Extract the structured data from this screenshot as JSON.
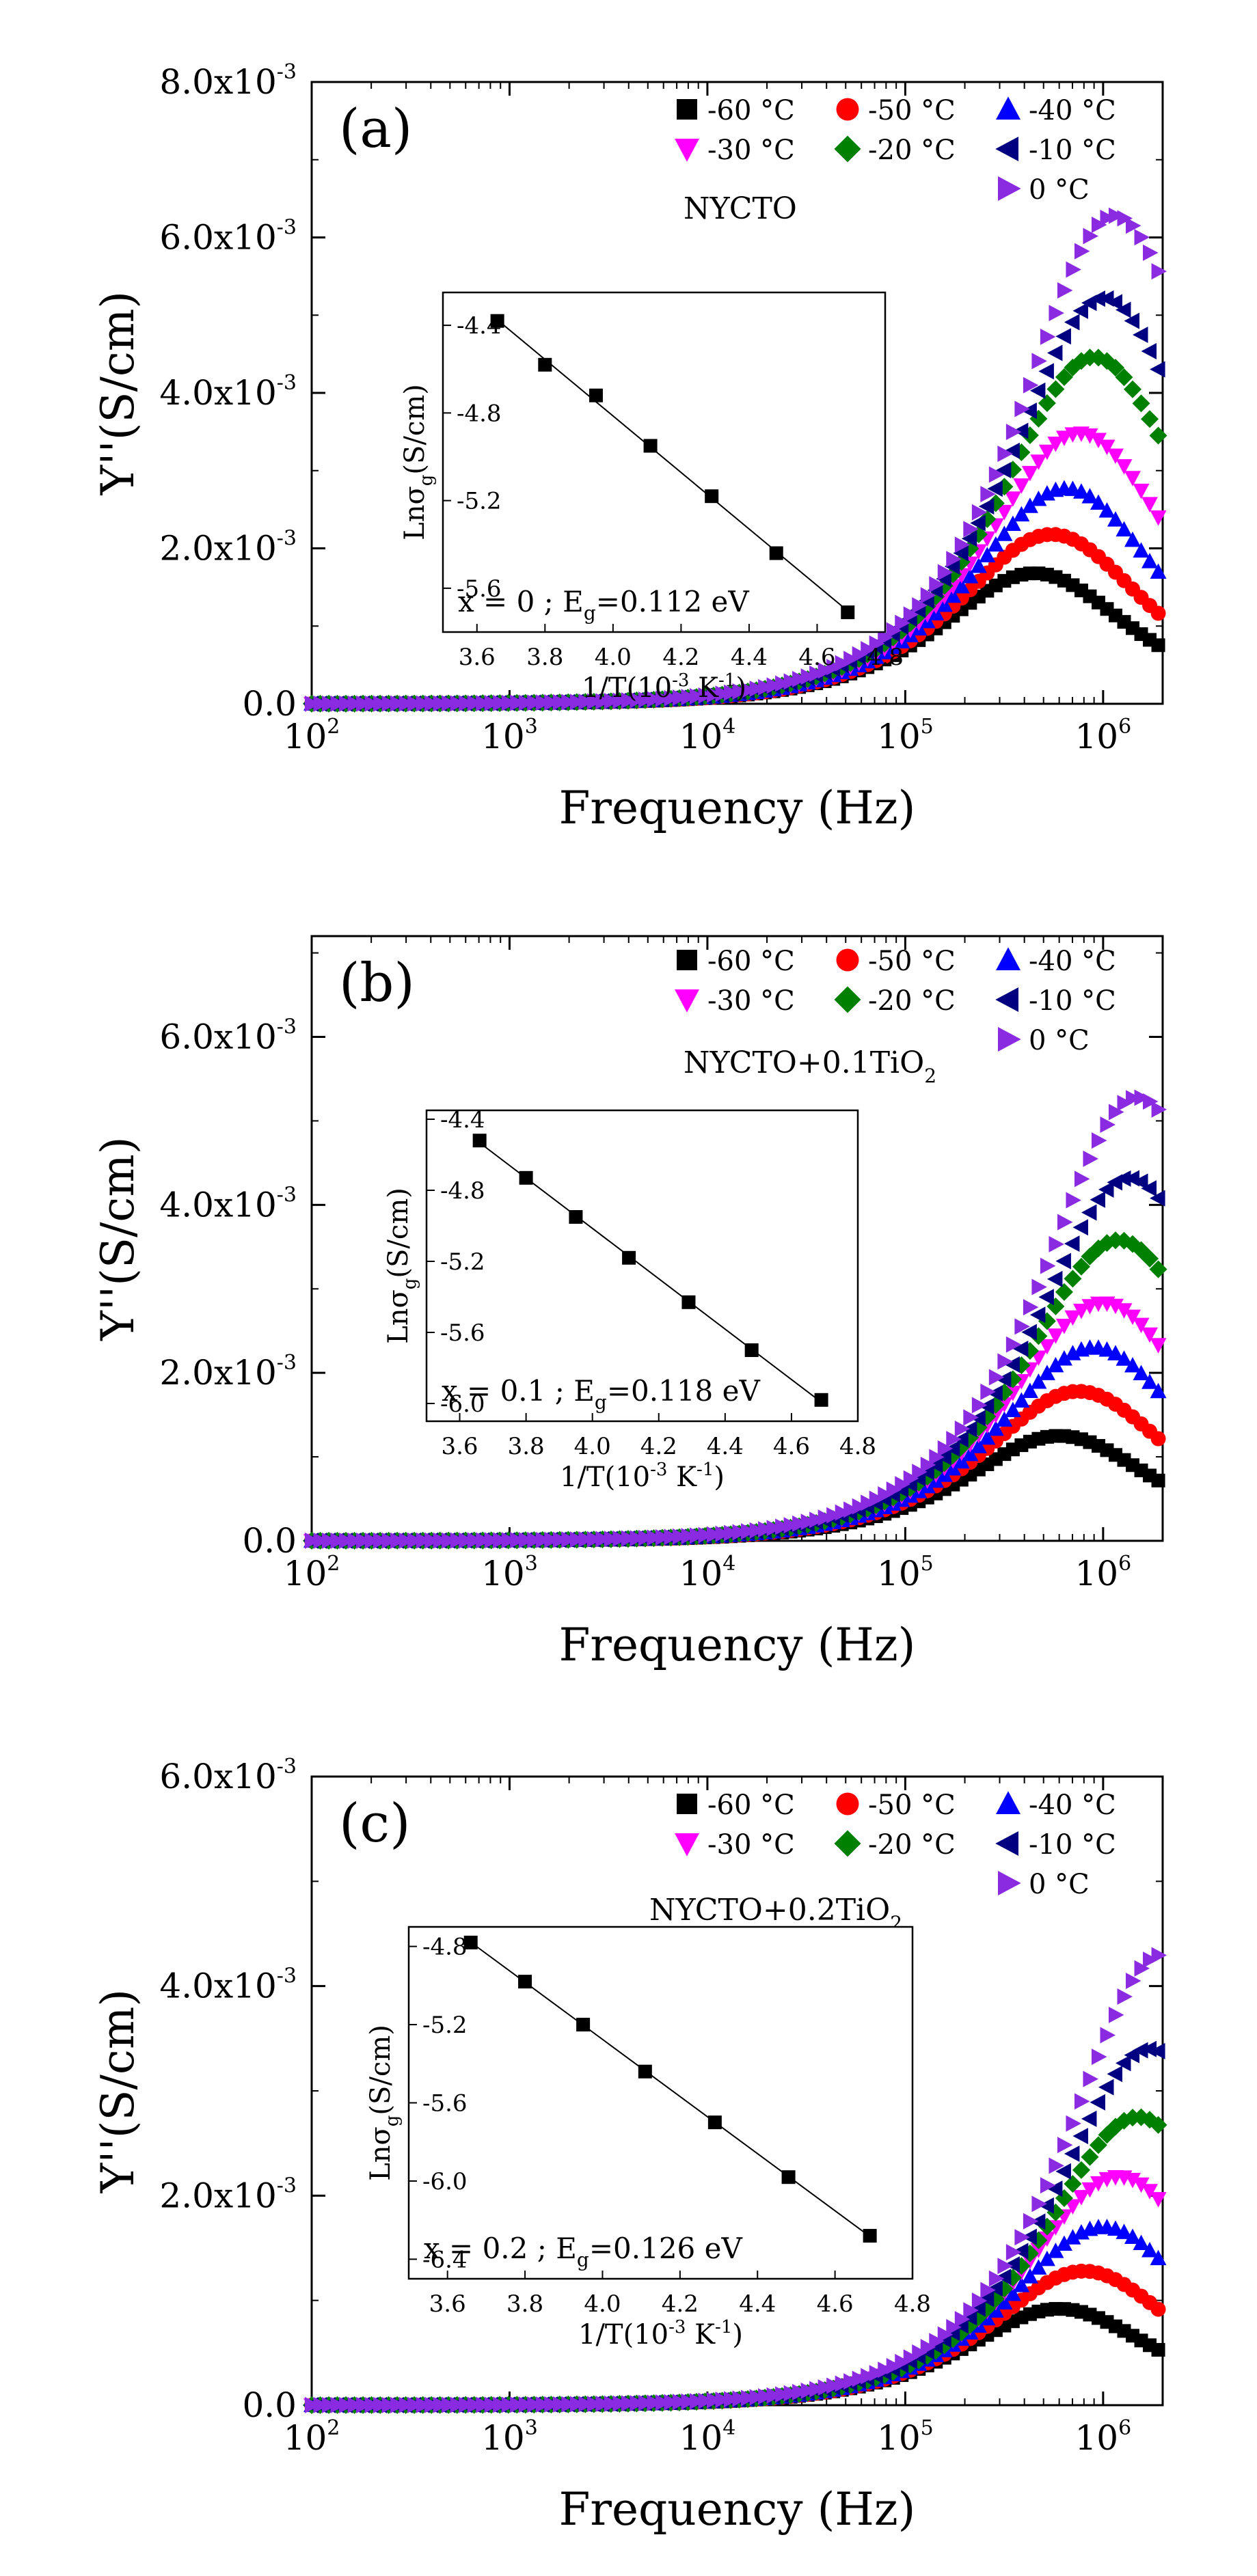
{
  "temperatures": [
    -60,
    -50,
    -40,
    -30,
    -20,
    -10,
    0
  ],
  "series_style": [
    {
      "name": "-60 °C",
      "color": "#000000",
      "marker": "square"
    },
    {
      "name": "-50 °C",
      "color": "#ff0000",
      "marker": "circle"
    },
    {
      "name": "-40 °C",
      "color": "#0000ff",
      "marker": "triangle-up"
    },
    {
      "name": "-30 °C",
      "color": "#ff00ff",
      "marker": "triangle-down"
    },
    {
      "name": "-20 °C",
      "color": "#008000",
      "marker": "diamond"
    },
    {
      "name": "-10 °C",
      "color": "#000080",
      "marker": "triangle-left"
    },
    {
      "name": "0 °C",
      "color": "#8a2be2",
      "marker": "triangle-right"
    }
  ],
  "chart_data": [
    {
      "panel": "(a)",
      "sample_label": "NYCTO",
      "type": "scatter",
      "xscale": "log",
      "xlabel": "Frequency (Hz)",
      "ylabel": "Y''(S/cm)",
      "xlim": [
        100,
        2000000
      ],
      "ylim": [
        0,
        0.008
      ],
      "y_ticks": [
        0,
        0.002,
        0.004,
        0.006,
        0.008
      ],
      "y_tick_labels": [
        "0.0",
        "2.0x10",
        "4.0x10",
        "6.0x10",
        "8.0x10"
      ],
      "peaks": [
        {
          "name": "-60 °C",
          "peak_frequency": 450000,
          "peak_value": 0.00168
        },
        {
          "name": "-50 °C",
          "peak_frequency": 550000,
          "peak_value": 0.00218
        },
        {
          "name": "-40 °C",
          "peak_frequency": 650000,
          "peak_value": 0.00277
        },
        {
          "name": "-30 °C",
          "peak_frequency": 760000,
          "peak_value": 0.00348
        },
        {
          "name": "-20 °C",
          "peak_frequency": 900000,
          "peak_value": 0.00446
        },
        {
          "name": "-10 °C",
          "peak_frequency": 1000000,
          "peak_value": 0.00522
        },
        {
          "name": "0 °C",
          "peak_frequency": 1150000,
          "peak_value": 0.00628
        }
      ],
      "inset": {
        "type": "scatter",
        "xlabel": "1/T(10",
        "ylabel": "Lnσ",
        "x": [
          3.66,
          3.8,
          3.95,
          4.11,
          4.29,
          4.48,
          4.69
        ],
        "y": [
          -4.38,
          -4.58,
          -4.72,
          -4.95,
          -5.18,
          -5.44,
          -5.71
        ],
        "xlim": [
          3.5,
          4.8
        ],
        "ylim": [
          -5.8,
          -4.25
        ],
        "x_ticks": [
          "3.6",
          "3.8",
          "4.0",
          "4.2",
          "4.4",
          "4.6",
          "4.8"
        ],
        "y_ticks": [
          "-4.4",
          "-4.8",
          "-5.2",
          "-5.6"
        ],
        "annotation_prefix": "x = 0 ; E",
        "annotation_suffix": "=0.112 eV"
      }
    },
    {
      "panel": "(b)",
      "sample_label": "NYCTO+0.1TiO",
      "type": "scatter",
      "xscale": "log",
      "xlabel": "Frequency (Hz)",
      "ylabel": "Y''(S/cm)",
      "xlim": [
        100,
        2000000
      ],
      "ylim": [
        0,
        0.0072
      ],
      "y_ticks": [
        0,
        0.002,
        0.004,
        0.006
      ],
      "y_tick_labels": [
        "0.0",
        "2.0x10",
        "4.0x10",
        "6.0x10"
      ],
      "peaks": [
        {
          "name": "-60 °C",
          "peak_frequency": 600000,
          "peak_value": 0.00125
        },
        {
          "name": "-50 °C",
          "peak_frequency": 750000,
          "peak_value": 0.00178
        },
        {
          "name": "-40 °C",
          "peak_frequency": 900000,
          "peak_value": 0.0023
        },
        {
          "name": "-30 °C",
          "peak_frequency": 1000000,
          "peak_value": 0.00283
        },
        {
          "name": "-20 °C",
          "peak_frequency": 1200000,
          "peak_value": 0.00358
        },
        {
          "name": "-10 °C",
          "peak_frequency": 1350000,
          "peak_value": 0.00432
        },
        {
          "name": "0 °C",
          "peak_frequency": 1500000,
          "peak_value": 0.00528
        }
      ],
      "inset": {
        "type": "scatter",
        "xlabel": "1/T(10",
        "ylabel": "Lnσ",
        "x": [
          3.66,
          3.8,
          3.95,
          4.11,
          4.29,
          4.48,
          4.69
        ],
        "y": [
          -4.52,
          -4.73,
          -4.95,
          -5.18,
          -5.43,
          -5.7,
          -5.98
        ],
        "xlim": [
          3.5,
          4.8
        ],
        "ylim": [
          -6.1,
          -4.35
        ],
        "x_ticks": [
          "3.6",
          "3.8",
          "4.0",
          "4.2",
          "4.4",
          "4.6",
          "4.8"
        ],
        "y_ticks": [
          "-4.4",
          "-4.8",
          "-5.2",
          "-5.6",
          "-6.0"
        ],
        "annotation_prefix": "x = 0.1 ; E",
        "annotation_suffix": "=0.118 eV"
      }
    },
    {
      "panel": "(c)",
      "sample_label": "NYCTO+0.2TiO",
      "type": "scatter",
      "xscale": "log",
      "xlabel": "Frequency (Hz)",
      "ylabel": "Y''(S/cm)",
      "xlim": [
        100,
        2000000
      ],
      "ylim": [
        0,
        0.006
      ],
      "y_ticks": [
        0,
        0.002,
        0.004,
        0.006
      ],
      "y_tick_labels": [
        "0.0",
        "2.0x10",
        "4.0x10",
        "6.0x10"
      ],
      "peaks": [
        {
          "name": "-60 °C",
          "peak_frequency": 600000,
          "peak_value": 0.00092
        },
        {
          "name": "-50 °C",
          "peak_frequency": 800000,
          "peak_value": 0.00128
        },
        {
          "name": "-40 °C",
          "peak_frequency": 1000000,
          "peak_value": 0.0017
        },
        {
          "name": "-30 °C",
          "peak_frequency": 1200000,
          "peak_value": 0.00218
        },
        {
          "name": "-20 °C",
          "peak_frequency": 1500000,
          "peak_value": 0.00275
        },
        {
          "name": "-10 °C",
          "peak_frequency": 1700000,
          "peak_value": 0.0034
        },
        {
          "name": "0 °C",
          "peak_frequency": 2000000,
          "peak_value": 0.0043
        }
      ],
      "inset": {
        "type": "scatter",
        "xlabel": "1/T(10",
        "ylabel": "Lnσ",
        "x": [
          3.66,
          3.8,
          3.95,
          4.11,
          4.29,
          4.48,
          4.69
        ],
        "y": [
          -4.78,
          -4.98,
          -5.2,
          -5.44,
          -5.7,
          -5.98,
          -6.28
        ],
        "xlim": [
          3.5,
          4.8
        ],
        "ylim": [
          -6.5,
          -4.7
        ],
        "x_ticks": [
          "3.6",
          "3.8",
          "4.0",
          "4.2",
          "4.4",
          "4.6",
          "4.8"
        ],
        "y_ticks": [
          "-4.8",
          "-5.2",
          "-5.6",
          "-6.0",
          "-6.4"
        ],
        "annotation_prefix": "x = 0.2 ; E",
        "annotation_suffix": "=0.126 eV"
      }
    }
  ]
}
